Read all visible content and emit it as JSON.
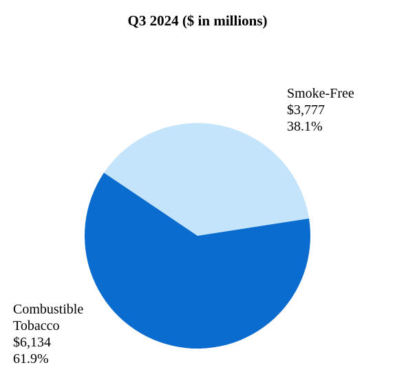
{
  "chart_data": {
    "type": "pie",
    "title": "Q3 2024 ($ in millions)",
    "slices": [
      {
        "name": "Smoke-Free",
        "value": 3777,
        "value_label": "$3,777",
        "percent": 38.1,
        "percent_label": "38.1%",
        "color": "#c4e4fb"
      },
      {
        "name": "Combustible Tobacco",
        "name_lines": [
          "Combustible",
          "Tobacco"
        ],
        "value": 6134,
        "value_label": "$6,134",
        "percent": 61.9,
        "percent_label": "61.9%",
        "color": "#0a6ccf"
      }
    ]
  }
}
